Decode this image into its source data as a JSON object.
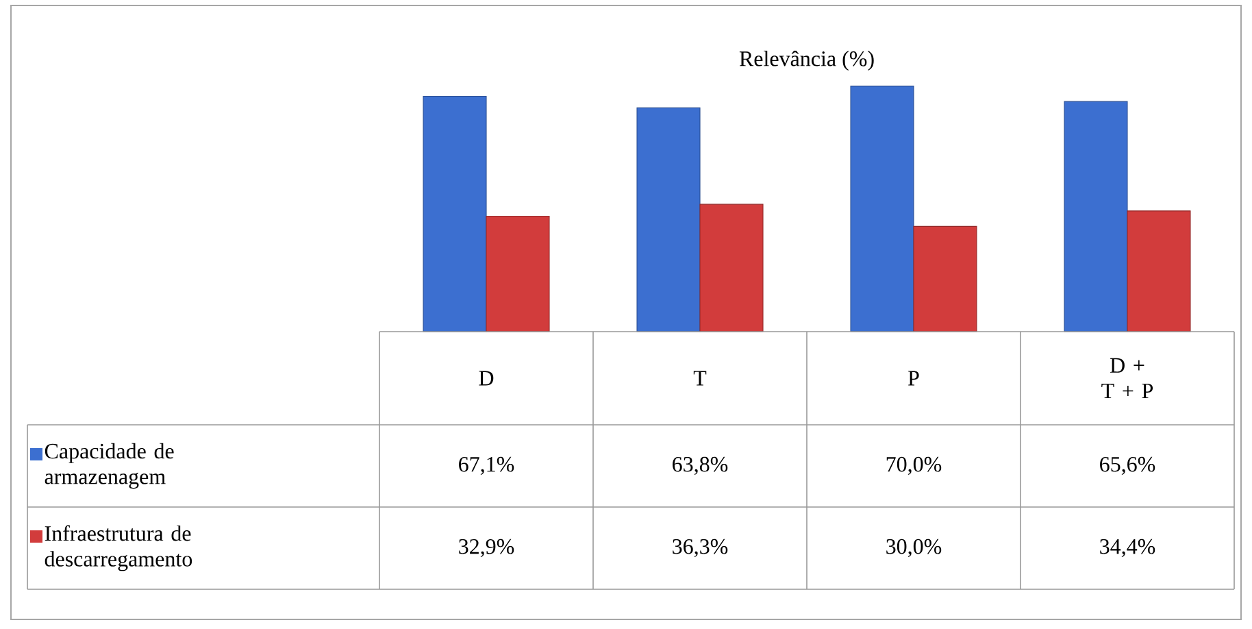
{
  "chart_data": {
    "type": "bar",
    "title": "Relevância (%)",
    "categories": [
      "D",
      "T",
      "P",
      "D + T + P"
    ],
    "legend": "bottom",
    "series": [
      {
        "name": "Capacidade de armazenagem",
        "color": "#3c6fd0",
        "values": [
          67.1,
          63.8,
          70.0,
          65.6
        ],
        "value_labels": [
          "67,1%",
          "63,8%",
          "70,0%",
          "65,6%"
        ]
      },
      {
        "name": "Infraestrutura de descarregamento",
        "color": "#d23c3c",
        "values": [
          32.9,
          36.3,
          30.0,
          34.4
        ],
        "value_labels": [
          "32,9%",
          "36,3%",
          "30,0%",
          "34,4%"
        ]
      }
    ]
  }
}
